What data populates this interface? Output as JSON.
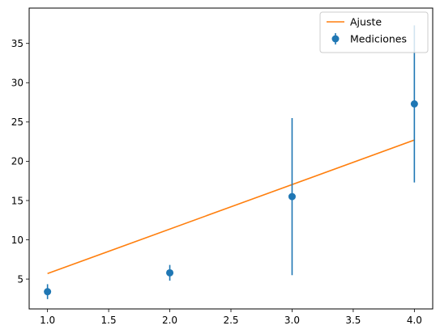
{
  "chart_data": {
    "type": "scatter",
    "title": "",
    "xlabel": "",
    "ylabel": "",
    "xlim": [
      0.85,
      4.15
    ],
    "ylim": [
      1.2,
      39.5
    ],
    "xticks": [
      1.0,
      1.5,
      2.0,
      2.5,
      3.0,
      3.5,
      4.0
    ],
    "xtick_labels": [
      "1.0",
      "1.5",
      "2.0",
      "2.5",
      "3.0",
      "3.5",
      "4.0"
    ],
    "yticks": [
      5,
      10,
      15,
      20,
      25,
      30,
      35
    ],
    "ytick_labels": [
      "5",
      "10",
      "15",
      "20",
      "25",
      "30",
      "35"
    ],
    "grid": false,
    "legend_position": "top-right",
    "series": [
      {
        "name": "Ajuste",
        "kind": "line",
        "color": "#ff7f0e",
        "x": [
          1.0,
          4.0
        ],
        "y": [
          5.7,
          22.7
        ]
      },
      {
        "name": "Mediciones",
        "kind": "errorbar",
        "color": "#1f77b4",
        "x": [
          1.0,
          2.0,
          3.0,
          4.0
        ],
        "y": [
          3.4,
          5.8,
          15.5,
          27.3
        ],
        "yerr": [
          0.95,
          1.0,
          10.0,
          10.0
        ]
      }
    ]
  }
}
